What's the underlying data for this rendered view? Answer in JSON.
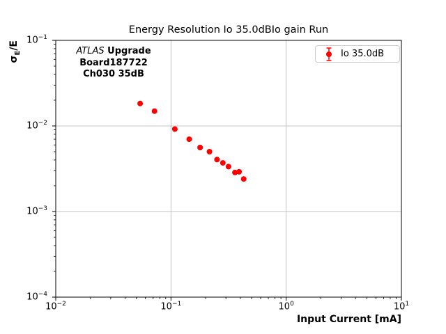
{
  "chart_data": {
    "type": "scatter",
    "title": "Energy Resolution Io 35.0dBIo gain Run",
    "xlabel": "Input Current [mA]",
    "ylabel": {
      "symbol": "σ",
      "subscript": "E",
      "suffix": "/E",
      "plain": "σE/E"
    },
    "xscale": "log",
    "yscale": "log",
    "xlim": [
      0.01,
      10
    ],
    "ylim": [
      0.0001,
      0.1
    ],
    "x_tick_exponents": [
      -2,
      -1,
      0,
      1
    ],
    "y_tick_exponents": [
      -1,
      -2,
      -3,
      -4
    ],
    "grid": true,
    "grid_color": "#b0b0b0",
    "axis_color": "#000000",
    "annotation": {
      "italic": "ATLAS",
      "bold": "Upgrade",
      "line2": "Board187722",
      "line3": "Ch030 35dB"
    },
    "legend": {
      "label": "Io 35.0dB",
      "location": "upper right",
      "marker": "errorbar-point",
      "marker_color": "#ff0000"
    },
    "series": [
      {
        "name": "Io 35.0dB",
        "color": "#ff0000",
        "marker": "circle",
        "x": [
          0.054,
          0.072,
          0.108,
          0.144,
          0.179,
          0.216,
          0.251,
          0.282,
          0.316,
          0.359,
          0.39,
          0.428
        ],
        "y": [
          0.0183,
          0.0149,
          0.0092,
          0.007,
          0.0056,
          0.005,
          0.00405,
          0.0037,
          0.00335,
          0.00286,
          0.00291,
          0.0024
        ]
      }
    ]
  }
}
